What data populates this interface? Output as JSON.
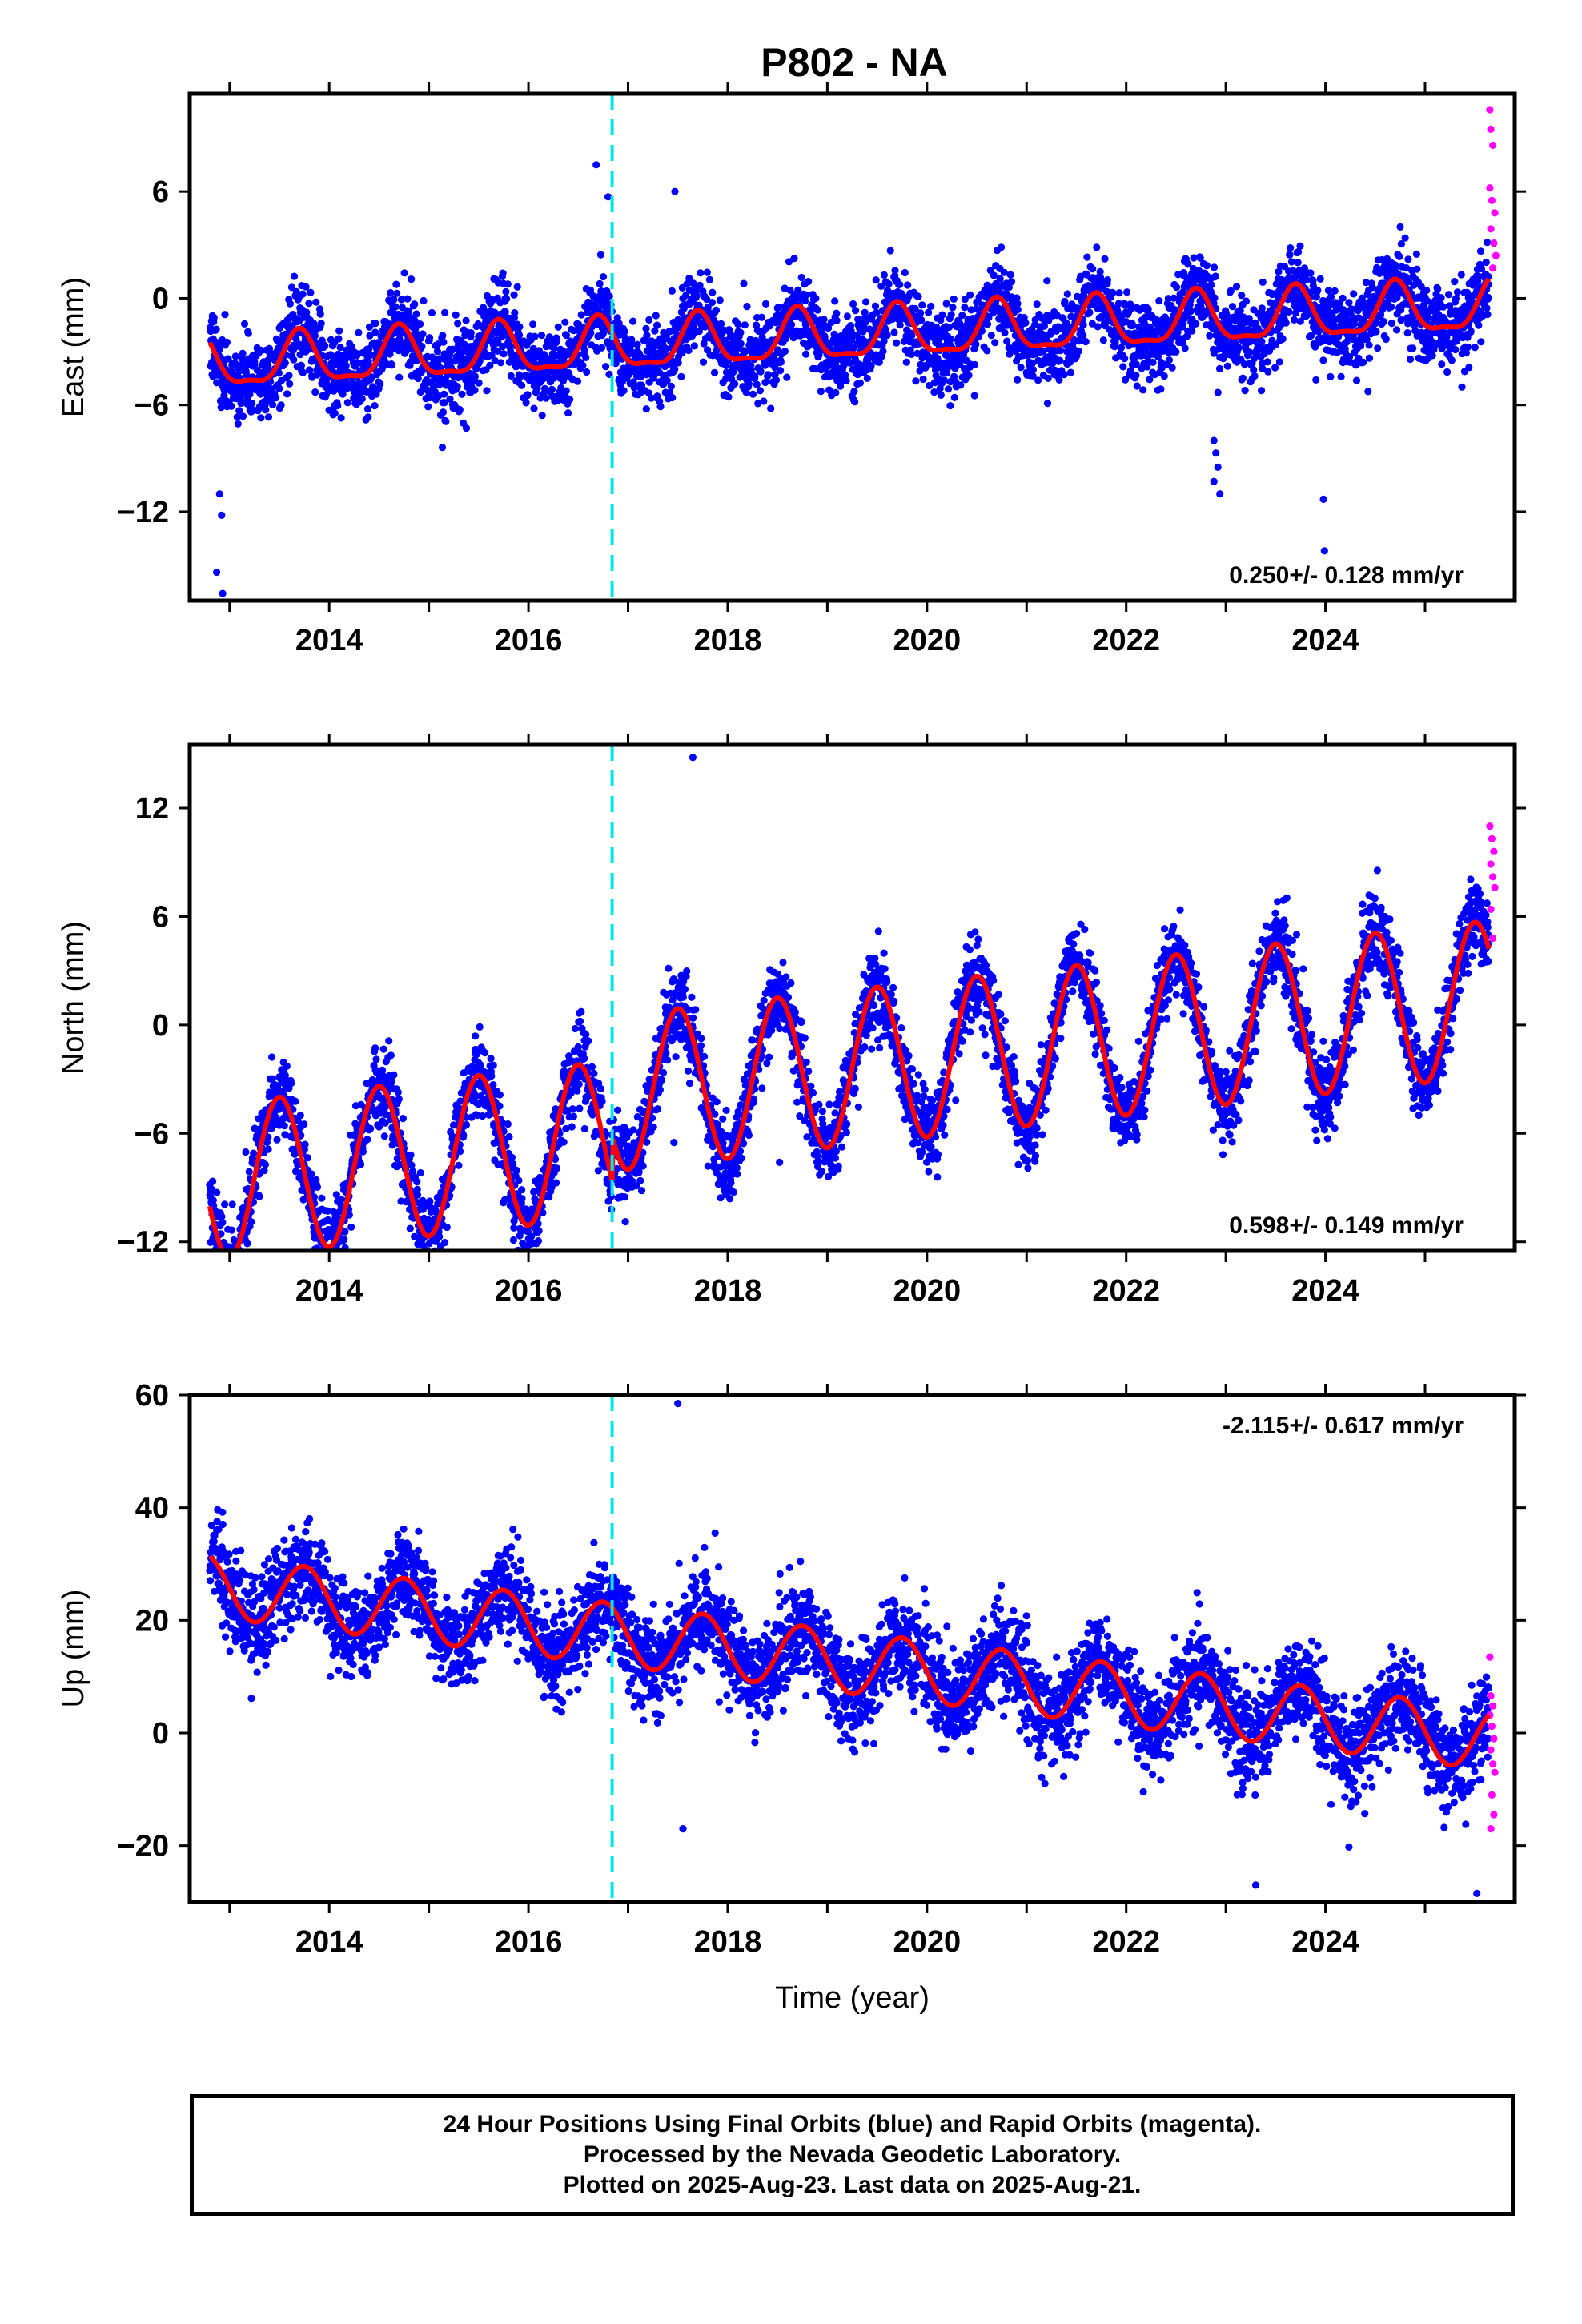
{
  "title": "P802 - NA",
  "colors": {
    "final_orbits": "#0000ff",
    "rapid_orbits": "#ff00ff",
    "model": "#ff0000",
    "event": "#00e5e5",
    "axes": "#000000"
  },
  "caption": {
    "line1": "24 Hour Positions Using Final Orbits (blue) and Rapid Orbits (magenta).",
    "line2": "Processed by the Nevada Geodetic Laboratory.",
    "line3": "Plotted on 2025-Aug-23. Last data on 2025-Aug-21."
  },
  "chart_data": [
    {
      "type": "scatter",
      "component": "East",
      "ylabel": "East (mm)",
      "xlabel": "",
      "rate_label": "0.250+/- 0.128 mm/yr",
      "rate_position": "bottom-right",
      "xlim": [
        2012.6,
        2025.9
      ],
      "ylim": [
        -17,
        11.5
      ],
      "x_ticks": [
        2014,
        2016,
        2018,
        2020,
        2022,
        2024
      ],
      "y_ticks": [
        6,
        0,
        -6,
        -12
      ],
      "y_tick_labels": [
        "6",
        "0",
        "−6",
        "−12"
      ],
      "event_lines": [
        2016.84
      ],
      "start": 2012.8,
      "end": 2025.64,
      "model": {
        "offset": -2.2,
        "slope": 0.25,
        "annual_amp": 1.4,
        "annual_peak": 0.7,
        "semiannual_amp": 0.45
      },
      "scatter_sd": 1.1,
      "outliers": [
        [
          2012.9,
          -11.0
        ],
        [
          2012.92,
          -12.2
        ],
        [
          2012.87,
          -15.4
        ],
        [
          2012.93,
          -16.6
        ],
        [
          2016.68,
          7.5
        ],
        [
          2016.8,
          5.7
        ],
        [
          2022.88,
          -8.0
        ],
        [
          2022.9,
          -8.7
        ],
        [
          2022.92,
          -9.5
        ],
        [
          2022.88,
          -10.3
        ],
        [
          2022.94,
          -11.0
        ],
        [
          2022.92,
          -5.3
        ],
        [
          2023.98,
          -11.3
        ],
        [
          2023.99,
          -14.2
        ],
        [
          2017.47,
          6.0
        ]
      ],
      "rapid_points": [
        [
          2025.65,
          10.6
        ],
        [
          2025.66,
          9.5
        ],
        [
          2025.68,
          8.6
        ],
        [
          2025.65,
          6.2
        ],
        [
          2025.67,
          5.5
        ],
        [
          2025.7,
          4.8
        ],
        [
          2025.66,
          3.9
        ],
        [
          2025.69,
          3.1
        ],
        [
          2025.71,
          2.4
        ],
        [
          2025.68,
          1.7
        ]
      ]
    },
    {
      "type": "scatter",
      "component": "North",
      "ylabel": "North (mm)",
      "xlabel": "",
      "rate_label": "0.598+/- 0.149 mm/yr",
      "rate_position": "bottom-right",
      "xlim": [
        2012.6,
        2025.9
      ],
      "ylim": [
        -12.5,
        15.5
      ],
      "x_ticks": [
        2014,
        2016,
        2018,
        2020,
        2022,
        2024
      ],
      "y_ticks": [
        12,
        6,
        0,
        -6,
        -12
      ],
      "y_tick_labels": [
        "12",
        "6",
        "0",
        "−6",
        "−12"
      ],
      "event_lines": [
        2016.84
      ],
      "start": 2012.8,
      "end": 2025.64,
      "model": {
        "offset": -5.0,
        "slope": 0.598,
        "annual_amp": 4.3,
        "annual_peak": 0.5,
        "semiannual_amp": 0.0,
        "step_at": 2016.84,
        "step": 2.5
      },
      "scatter_sd": 1.1,
      "outliers": [
        [
          2017.65,
          14.8
        ],
        [
          2023.99,
          -5.8
        ],
        [
          2017.46,
          -6.5
        ],
        [
          2018.52,
          -7.6
        ],
        [
          2015.85,
          -11.9
        ]
      ],
      "rapid_points": [
        [
          2025.65,
          11.0
        ],
        [
          2025.67,
          10.3
        ],
        [
          2025.69,
          9.6
        ],
        [
          2025.66,
          8.9
        ],
        [
          2025.68,
          8.2
        ],
        [
          2025.7,
          7.6
        ],
        [
          2025.66,
          6.4
        ],
        [
          2025.68,
          4.8
        ]
      ]
    },
    {
      "type": "scatter",
      "component": "Up",
      "ylabel": "Up (mm)",
      "xlabel": "Time (year)",
      "rate_label": "-2.115+/- 0.617 mm/yr",
      "rate_position": "top-right",
      "xlim": [
        2012.6,
        2025.9
      ],
      "ylim": [
        -30,
        60
      ],
      "x_ticks": [
        2014,
        2016,
        2018,
        2020,
        2022,
        2024
      ],
      "y_ticks": [
        60,
        40,
        20,
        0,
        -20
      ],
      "y_tick_labels": [
        "60",
        "40",
        "20",
        "0",
        "−20"
      ],
      "event_lines": [
        2016.84
      ],
      "start": 2012.8,
      "end": 2025.64,
      "model": {
        "offset": 13.0,
        "slope": -2.115,
        "annual_amp": 5.5,
        "annual_peak": 0.75,
        "semiannual_amp": 0.0
      },
      "scatter_sd": 4.2,
      "outliers": [
        [
          2017.5,
          58.5
        ],
        [
          2012.87,
          36.0
        ],
        [
          2017.55,
          -17.0
        ],
        [
          2023.3,
          -27.0
        ],
        [
          2025.52,
          -28.5
        ],
        [
          2021.68,
          18.3
        ],
        [
          2016.75,
          27.0
        ]
      ],
      "rapid_points": [
        [
          2025.65,
          13.5
        ],
        [
          2025.66,
          6.6
        ],
        [
          2025.68,
          4.8
        ],
        [
          2025.65,
          3.2
        ],
        [
          2025.67,
          1.2
        ],
        [
          2025.69,
          -1.0
        ],
        [
          2025.66,
          -3.0
        ],
        [
          2025.68,
          -5.5
        ],
        [
          2025.7,
          -7.0
        ],
        [
          2025.67,
          -11.0
        ],
        [
          2025.69,
          -14.5
        ],
        [
          2025.66,
          -17.0
        ]
      ]
    }
  ]
}
